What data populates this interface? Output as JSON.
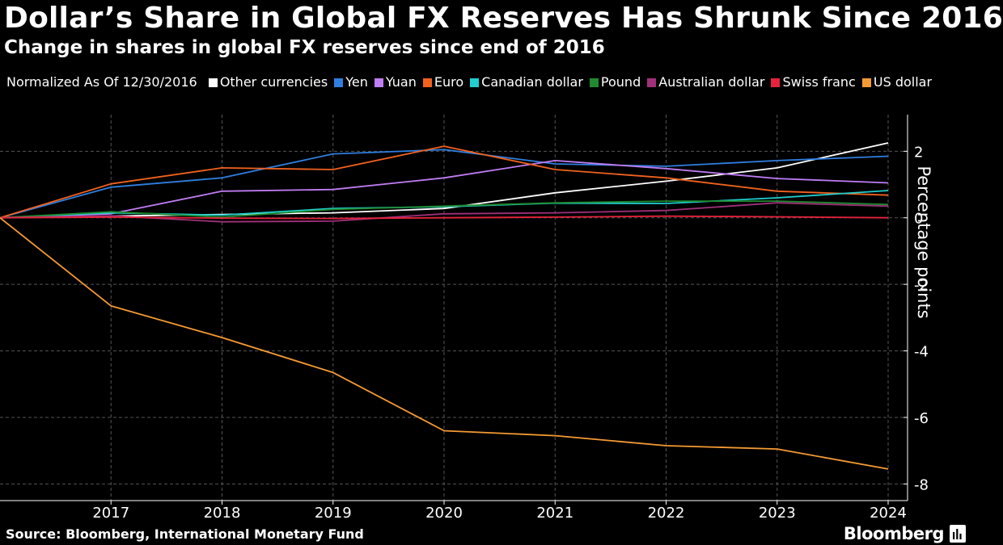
{
  "title": "Dollar’s Share in Global FX Reserves Has Shrunk Since 2016",
  "subtitle": "Change in shares in global FX reserves since end of 2016",
  "legend_note": "Normalized As Of 12/30/2016",
  "y_axis_label": "Percentage points",
  "source": "Source: Bloomberg, International Monetary Fund",
  "brand": "Bloomberg",
  "chart_data": {
    "type": "line",
    "x": [
      2016,
      2017,
      2018,
      2019,
      2020,
      2021,
      2022,
      2023,
      2024
    ],
    "x_tick_labels": [
      "2017",
      "2018",
      "2019",
      "2020",
      "2021",
      "2022",
      "2023",
      "2024"
    ],
    "y_ticks": [
      2,
      0,
      -2,
      -4,
      -6,
      -8
    ],
    "y_tick_labels": [
      "2",
      "0",
      "-2",
      "-4",
      "-6",
      "-8"
    ],
    "ylim": [
      -8.5,
      3.1
    ],
    "grid": true,
    "series": [
      {
        "name": "Other currencies",
        "color": "#ffffff",
        "values": [
          0,
          0.05,
          0.1,
          0.15,
          0.28,
          0.75,
          1.1,
          1.5,
          2.25
        ]
      },
      {
        "name": "Yen",
        "color": "#2f7fe0",
        "values": [
          0,
          0.92,
          1.2,
          1.92,
          2.05,
          1.62,
          1.55,
          1.72,
          1.85
        ]
      },
      {
        "name": "Yuan",
        "color": "#c07df5",
        "values": [
          0,
          0.12,
          0.8,
          0.85,
          1.2,
          1.72,
          1.48,
          1.18,
          1.05
        ]
      },
      {
        "name": "Euro",
        "color": "#f1621e",
        "values": [
          0,
          1.02,
          1.5,
          1.45,
          2.15,
          1.45,
          1.2,
          0.8,
          0.68
        ]
      },
      {
        "name": "Canadian dollar",
        "color": "#1fcfcf",
        "values": [
          0,
          0.15,
          0.08,
          0.28,
          0.33,
          0.44,
          0.43,
          0.6,
          0.82
        ]
      },
      {
        "name": "Pound",
        "color": "#1f8a2f",
        "values": [
          0,
          0.18,
          0.02,
          0.25,
          0.35,
          0.45,
          0.5,
          0.5,
          0.4
        ]
      },
      {
        "name": "Australian dollar",
        "color": "#a0307a",
        "values": [
          0,
          0.06,
          -0.12,
          -0.1,
          0.12,
          0.15,
          0.22,
          0.45,
          0.35
        ]
      },
      {
        "name": "Swiss franc",
        "color": "#e8223c",
        "values": [
          0,
          0.02,
          -0.01,
          -0.02,
          0.0,
          0.02,
          0.05,
          0.03,
          0.0
        ]
      },
      {
        "name": "US dollar",
        "color": "#f59a33",
        "values": [
          0,
          -2.65,
          -3.6,
          -4.65,
          -6.4,
          -6.55,
          -6.85,
          -6.95,
          -7.55
        ]
      }
    ]
  }
}
